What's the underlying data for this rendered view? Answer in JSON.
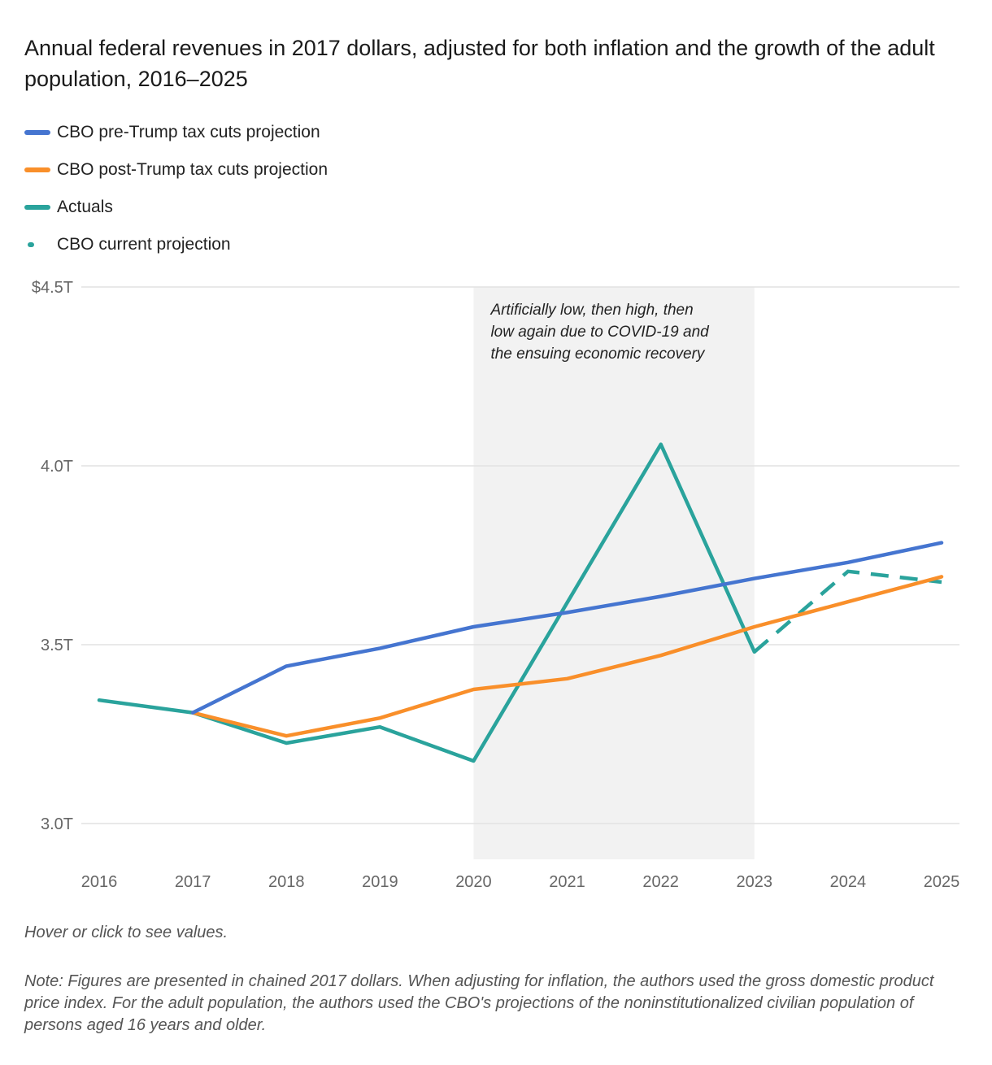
{
  "header": {
    "title": "Annual federal revenues in 2017 dollars, adjusted for both inflation and the growth of the adult population, 2016–2025"
  },
  "legend": {
    "items": [
      {
        "label": "CBO pre-Trump tax cuts projection",
        "color": "#4575d0",
        "style": "solid"
      },
      {
        "label": "CBO post-Trump tax cuts projection",
        "color": "#f98f2a",
        "style": "solid"
      },
      {
        "label": "Actuals",
        "color": "#2aa39c",
        "style": "solid"
      },
      {
        "label": "CBO current projection",
        "color": "#2aa39c",
        "style": "dashed"
      }
    ]
  },
  "chart_data": {
    "type": "line",
    "title": "Annual federal revenues in 2017 dollars, adjusted for both inflation and the growth of the adult population, 2016–2025",
    "xlabel": "",
    "ylabel": "",
    "x": [
      2016,
      2017,
      2018,
      2019,
      2020,
      2021,
      2022,
      2023,
      2024,
      2025
    ],
    "x_tick_labels": [
      "2016",
      "2017",
      "2018",
      "2019",
      "2020",
      "2021",
      "2022",
      "2023",
      "2024",
      "2025"
    ],
    "ylim": [
      2.9,
      4.5
    ],
    "y_ticks": [
      3.0,
      3.5,
      4.0,
      4.5
    ],
    "y_tick_labels": [
      "3.0T",
      "3.5T",
      "4.0T",
      "$4.5T"
    ],
    "grid": true,
    "series": [
      {
        "name": "CBO pre-Trump tax cuts projection",
        "color": "#4575d0",
        "dashed": false,
        "points": [
          [
            2017,
            3.31
          ],
          [
            2018,
            3.44
          ],
          [
            2019,
            3.49
          ],
          [
            2020,
            3.55
          ],
          [
            2021,
            3.59
          ],
          [
            2022,
            3.635
          ],
          [
            2023,
            3.685
          ],
          [
            2024,
            3.73
          ],
          [
            2025,
            3.785
          ]
        ]
      },
      {
        "name": "CBO post-Trump tax cuts projection",
        "color": "#f98f2a",
        "dashed": false,
        "points": [
          [
            2017,
            3.31
          ],
          [
            2018,
            3.245
          ],
          [
            2019,
            3.295
          ],
          [
            2020,
            3.375
          ],
          [
            2021,
            3.405
          ],
          [
            2022,
            3.47
          ],
          [
            2023,
            3.55
          ],
          [
            2024,
            3.62
          ],
          [
            2025,
            3.69
          ]
        ]
      },
      {
        "name": "Actuals",
        "color": "#2aa39c",
        "dashed": false,
        "points": [
          [
            2016,
            3.345
          ],
          [
            2017,
            3.31
          ],
          [
            2018,
            3.225
          ],
          [
            2019,
            3.27
          ],
          [
            2020,
            3.175
          ],
          [
            2022,
            4.06
          ],
          [
            2023,
            3.48
          ]
        ]
      },
      {
        "name": "CBO current projection",
        "color": "#2aa39c",
        "dashed": true,
        "points": [
          [
            2023,
            3.48
          ],
          [
            2024,
            3.705
          ],
          [
            2025,
            3.675
          ]
        ]
      }
    ],
    "annotation": {
      "x_start": 2020,
      "x_end": 2023,
      "lines": [
        "Artificially low, then high, then",
        "low again due to COVID-19 and",
        "the ensuing economic recovery"
      ]
    }
  },
  "footer": {
    "hint": "Hover or click to see values.",
    "note": "Note: Figures are presented in chained 2017 dollars. When adjusting for inflation, the authors used the gross domestic product price index. For the adult population, the authors used the CBO's projections of the noninstitutionalized civilian population of persons aged 16 years and older."
  }
}
